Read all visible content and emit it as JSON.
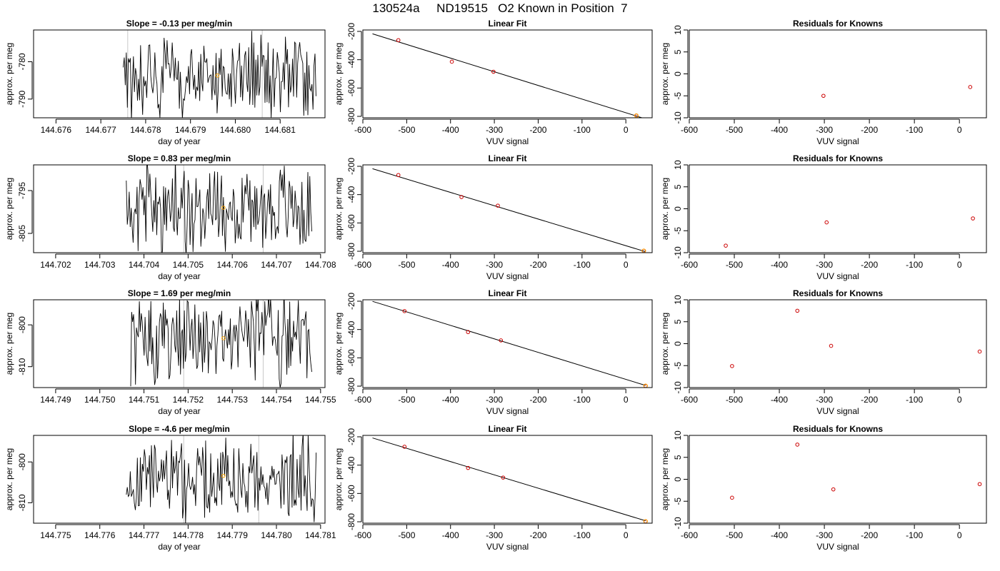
{
  "main_title": "130524a     ND19515   O2 Known in Position  7",
  "chart_data": [
    {
      "type": "line",
      "panel": "timeseries",
      "row": 1,
      "title": "Slope =  -0.13  per meg/min",
      "xlabel": "day of year",
      "ylabel": "approx. per meg",
      "xlim": [
        144.6755,
        144.682
      ],
      "ylim": [
        -795.0,
        -771.5
      ],
      "xticks": [
        144.676,
        144.677,
        144.678,
        144.679,
        144.68,
        144.681
      ],
      "xtick_labels": [
        "144.676",
        "144.677",
        "144.678",
        "144.679",
        "144.680",
        "144.681"
      ],
      "yticks": [
        -790,
        -780
      ],
      "ytick_labels": [
        "-790",
        "-780"
      ],
      "signal": {
        "x_start": 144.6775,
        "x_end": 144.6818,
        "center": -784,
        "amplitude": 9,
        "n": 190,
        "seed": 11
      },
      "vlines": [
        144.6776,
        144.6806
      ],
      "marker": {
        "x": 144.6796,
        "y": -783.7
      }
    },
    {
      "type": "scatter",
      "panel": "linear_fit",
      "row": 1,
      "title": "Linear Fit",
      "xlabel": "VUV signal",
      "ylabel": "approx. per meg",
      "xlim": [
        -600,
        60
      ],
      "ylim": [
        -810,
        -190
      ],
      "xticks": [
        -600,
        -500,
        -400,
        -300,
        -200,
        -100,
        0
      ],
      "yticks": [
        -800,
        -600,
        -400,
        -200
      ],
      "x": [
        -519,
        -397,
        -302,
        24
      ],
      "y": [
        -262,
        -414,
        -485,
        -795
      ],
      "fit_line": {
        "x": [
          -578,
          45
        ],
        "y": [
          -217,
          -818
        ]
      }
    },
    {
      "type": "scatter",
      "panel": "residuals",
      "row": 1,
      "title": "Residuals for Knowns",
      "xlabel": "VUV signal",
      "ylabel": "approx. per meg",
      "xlim": [
        -600,
        60
      ],
      "ylim": [
        -10,
        10
      ],
      "xticks": [
        -600,
        -500,
        -400,
        -300,
        -200,
        -100,
        0
      ],
      "yticks": [
        -10,
        -5,
        0,
        5,
        10
      ],
      "x": [
        -302,
        24
      ],
      "y": [
        -5.0,
        -3.0
      ]
    },
    {
      "type": "line",
      "panel": "timeseries",
      "row": 2,
      "title": "Slope =  0.83  per meg/min",
      "xlabel": "day of year",
      "ylabel": "approx. per meg",
      "xlim": [
        144.7015,
        144.7081
      ],
      "ylim": [
        -809.5,
        -789.0
      ],
      "xticks": [
        144.702,
        144.703,
        144.704,
        144.705,
        144.706,
        144.707,
        144.708
      ],
      "xtick_labels": [
        "144.702",
        "144.703",
        "144.704",
        "144.705",
        "144.706",
        "144.707",
        "144.708"
      ],
      "yticks": [
        -805,
        -795
      ],
      "ytick_labels": [
        "-805",
        "-795"
      ],
      "signal": {
        "x_start": 144.7036,
        "x_end": 144.7078,
        "center": -799,
        "amplitude": 9,
        "n": 190,
        "seed": 23
      },
      "vlines": [
        144.7049,
        144.7067
      ],
      "marker": {
        "x": 144.7058,
        "y": -799.0
      }
    },
    {
      "type": "scatter",
      "panel": "linear_fit",
      "row": 2,
      "title": "Linear Fit",
      "xlabel": "VUV signal",
      "ylabel": "approx. per meg",
      "xlim": [
        -600,
        60
      ],
      "ylim": [
        -810,
        -190
      ],
      "xticks": [
        -600,
        -500,
        -400,
        -300,
        -200,
        -100,
        0
      ],
      "yticks": [
        -800,
        -600,
        -400,
        -200
      ],
      "x": [
        -519,
        -375,
        -292,
        41
      ],
      "y": [
        -262,
        -417,
        -478,
        -797
      ],
      "fit_line": {
        "x": [
          -578,
          45
        ],
        "y": [
          -217,
          -803
        ]
      }
    },
    {
      "type": "scatter",
      "panel": "residuals",
      "row": 2,
      "title": "Residuals for Knowns",
      "xlabel": "VUV signal",
      "ylabel": "approx. per meg",
      "xlim": [
        -600,
        60
      ],
      "ylim": [
        -10,
        10
      ],
      "xticks": [
        -600,
        -500,
        -400,
        -300,
        -200,
        -100,
        0
      ],
      "yticks": [
        -10,
        -5,
        0,
        5,
        10
      ],
      "x": [
        -519,
        -295,
        30
      ],
      "y": [
        -8.4,
        -3.1,
        -2.2
      ]
    },
    {
      "type": "line",
      "panel": "timeseries",
      "row": 3,
      "title": "Slope =  1.69  per meg/min",
      "xlabel": "day of year",
      "ylabel": "approx. per meg",
      "xlim": [
        144.7485,
        144.7551
      ],
      "ylim": [
        -815.0,
        -794.0
      ],
      "xticks": [
        144.749,
        144.75,
        144.751,
        144.752,
        144.753,
        144.754,
        144.755
      ],
      "xtick_labels": [
        "144.749",
        "144.750",
        "144.751",
        "144.752",
        "144.753",
        "144.754",
        "144.755"
      ],
      "yticks": [
        -810,
        -800
      ],
      "ytick_labels": [
        "-810",
        "-800"
      ],
      "signal": {
        "x_start": 144.7507,
        "x_end": 144.7548,
        "center": -803,
        "amplitude": 9,
        "n": 190,
        "seed": 37
      },
      "vlines": [
        144.7519,
        144.7537
      ],
      "marker": {
        "x": 144.7528,
        "y": -803.2
      }
    },
    {
      "type": "scatter",
      "panel": "linear_fit",
      "row": 3,
      "title": "Linear Fit",
      "xlabel": "VUV signal",
      "ylabel": "approx. per meg",
      "xlim": [
        -600,
        60
      ],
      "ylim": [
        -810,
        -190
      ],
      "xticks": [
        -600,
        -500,
        -400,
        -300,
        -200,
        -100,
        0
      ],
      "yticks": [
        -800,
        -600,
        -400,
        -200
      ],
      "x": [
        -505,
        -360,
        -285,
        45
      ],
      "y": [
        -270,
        -418,
        -477,
        -798
      ],
      "fit_line": {
        "x": [
          -578,
          45
        ],
        "y": [
          -201,
          -795
        ]
      }
    },
    {
      "type": "scatter",
      "panel": "residuals",
      "row": 3,
      "title": "Residuals for Knowns",
      "xlabel": "VUV signal",
      "ylabel": "approx. per meg",
      "xlim": [
        -600,
        60
      ],
      "ylim": [
        -10,
        10
      ],
      "xticks": [
        -600,
        -500,
        -400,
        -300,
        -200,
        -100,
        0
      ],
      "yticks": [
        -10,
        -5,
        0,
        5,
        10
      ],
      "x": [
        -505,
        -360,
        -285,
        45
      ],
      "y": [
        -5.1,
        7.5,
        -0.5,
        -1.8
      ]
    },
    {
      "type": "line",
      "panel": "timeseries",
      "row": 4,
      "title": "Slope =  -4.6  per meg/min",
      "xlabel": "day of year",
      "ylabel": "approx. per meg",
      "xlim": [
        144.7745,
        144.7811
      ],
      "ylim": [
        -815.0,
        -793.5
      ],
      "xticks": [
        144.775,
        144.776,
        144.777,
        144.778,
        144.779,
        144.78,
        144.781
      ],
      "xtick_labels": [
        "144.775",
        "144.776",
        "144.777",
        "144.778",
        "144.779",
        "144.780",
        "144.781"
      ],
      "yticks": [
        -810,
        -800
      ],
      "ytick_labels": [
        "-810",
        "-800"
      ],
      "signal": {
        "x_start": 144.7766,
        "x_end": 144.7809,
        "center": -804,
        "amplitude": 9,
        "n": 190,
        "seed": 51
      },
      "vlines": [
        144.7779,
        144.7796
      ],
      "marker": {
        "x": 144.7788,
        "y": -803.4
      }
    },
    {
      "type": "scatter",
      "panel": "linear_fit",
      "row": 4,
      "title": "Linear Fit",
      "xlabel": "VUV signal",
      "ylabel": "approx. per meg",
      "xlim": [
        -600,
        60
      ],
      "ylim": [
        -810,
        -190
      ],
      "xticks": [
        -600,
        -500,
        -400,
        -300,
        -200,
        -100,
        0
      ],
      "yticks": [
        -800,
        -600,
        -400,
        -200
      ],
      "x": [
        -505,
        -360,
        -280,
        45
      ],
      "y": [
        -270,
        -420,
        -488,
        -797
      ],
      "fit_line": {
        "x": [
          -578,
          45
        ],
        "y": [
          -208,
          -793
        ]
      }
    },
    {
      "type": "scatter",
      "panel": "residuals",
      "row": 4,
      "title": "Residuals for Knowns",
      "xlabel": "VUV signal",
      "ylabel": "approx. per meg",
      "xlim": [
        -600,
        60
      ],
      "ylim": [
        -10,
        10
      ],
      "xticks": [
        -600,
        -500,
        -400,
        -300,
        -200,
        -100,
        0
      ],
      "yticks": [
        -10,
        -5,
        0,
        5,
        10
      ],
      "x": [
        -505,
        -360,
        -280,
        45
      ],
      "y": [
        -4.2,
        7.9,
        -2.3,
        -1.1
      ]
    }
  ]
}
